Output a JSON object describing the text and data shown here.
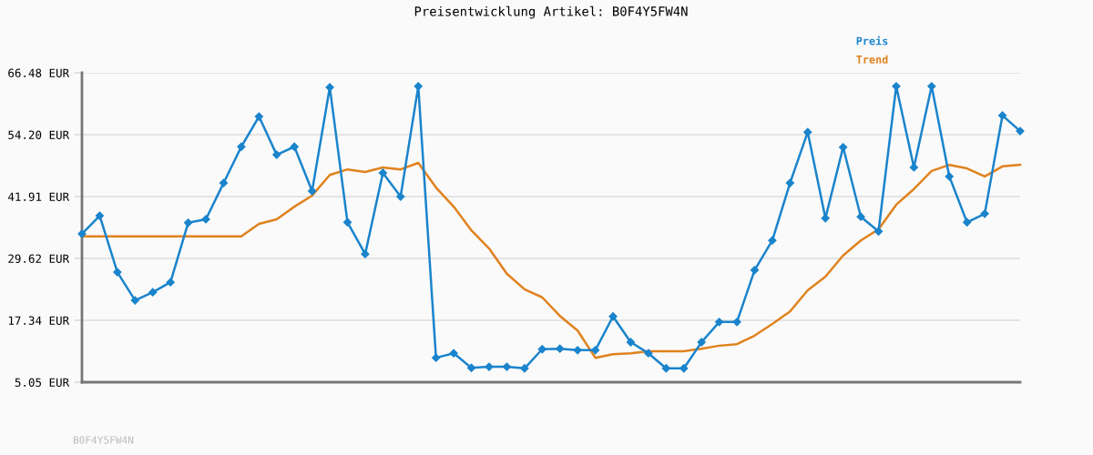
{
  "chart_data": {
    "type": "line",
    "title": "Preisentwicklung Artikel: B0F4Y5FW4N",
    "categories": [
      null,
      null,
      null,
      null,
      null,
      null,
      null,
      null,
      null,
      null,
      null,
      null,
      null,
      null,
      null,
      null,
      null,
      null,
      null,
      null,
      null,
      null,
      null,
      null,
      null,
      null,
      null,
      null,
      null,
      null,
      null,
      null,
      null,
      null,
      null,
      null,
      null,
      null,
      null,
      null,
      null,
      null,
      null,
      null,
      null,
      null,
      null,
      null,
      null,
      null,
      null,
      null,
      null,
      null
    ],
    "series": [
      {
        "name": "Preis",
        "color": "#1a84cc",
        "marker": "diamond",
        "values": [
          34.5,
          38.1,
          26.9,
          21.3,
          22.9,
          24.9,
          36.7,
          37.4,
          44.6,
          51.8,
          57.8,
          50.2,
          51.8,
          43.0,
          63.6,
          36.8,
          30.5,
          46.6,
          41.9,
          63.8,
          9.9,
          10.8,
          7.9,
          8.1,
          8.1,
          7.8,
          11.6,
          11.7,
          11.4,
          11.4,
          18.1,
          13.0,
          10.8,
          7.8,
          7.8,
          13.0,
          17.0,
          17.0,
          27.3,
          33.2,
          44.6,
          54.7,
          37.6,
          51.7,
          37.9,
          35.0,
          63.8,
          47.7,
          63.8,
          45.9,
          36.8,
          38.5,
          58.0,
          54.9
        ]
      },
      {
        "name": "Trend",
        "color": "#e0821e",
        "marker": "none",
        "values": [
          34.0,
          34.0,
          34.0,
          34.0,
          34.0,
          34.0,
          34.0,
          34.0,
          34.0,
          34.0,
          36.5,
          37.4,
          39.9,
          42.1,
          46.2,
          47.3,
          46.8,
          47.7,
          47.3,
          48.6,
          43.7,
          39.9,
          35.2,
          31.6,
          26.6,
          23.5,
          21.9,
          18.2,
          15.3,
          9.9,
          10.6,
          10.8,
          11.2,
          11.2,
          11.2,
          11.7,
          12.3,
          12.6,
          14.3,
          16.6,
          19.1,
          23.3,
          26.0,
          30.2,
          33.2,
          35.4,
          40.3,
          43.4,
          47.0,
          48.2,
          47.5,
          45.9,
          47.9,
          48.2
        ]
      }
    ],
    "ylim": [
      5.05,
      66.48
    ],
    "yticks": [
      {
        "value": 5.05,
        "label": "5.05 EUR"
      },
      {
        "value": 17.34,
        "label": "17.34 EUR"
      },
      {
        "value": 29.62,
        "label": "29.62 EUR"
      },
      {
        "value": 41.91,
        "label": "41.91 EUR"
      },
      {
        "value": 54.2,
        "label": "54.20 EUR"
      },
      {
        "value": 66.48,
        "label": "66.48 EUR"
      }
    ],
    "grid": "y",
    "legend": "top right",
    "line_style": "solid",
    "annotations": [
      "B0F4Y5FW4N"
    ]
  }
}
